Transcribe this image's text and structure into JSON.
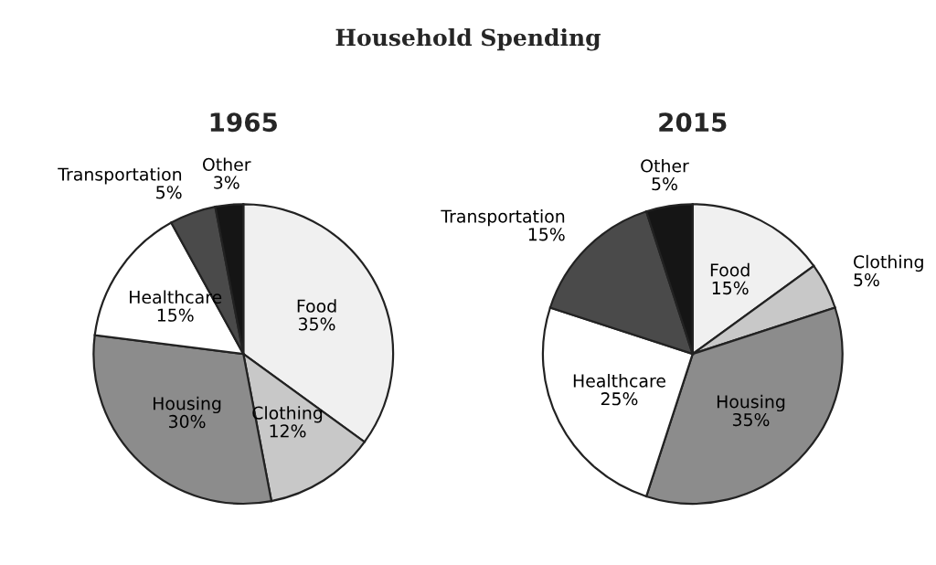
{
  "chart_data": [
    {
      "type": "pie",
      "title": "1965",
      "annotations": [
        "Household Spending"
      ],
      "categories": [
        "Food",
        "Clothing",
        "Housing",
        "Healthcare",
        "Transportation",
        "Other"
      ],
      "values": [
        35,
        12,
        30,
        15,
        5,
        3
      ],
      "value_labels": [
        "35%",
        "12%",
        "30%",
        "15%",
        "5%",
        "3%"
      ],
      "colors": [
        "#f0f0f0",
        "#c8c8c8",
        "#8c8c8c",
        "#ffffff",
        "#4a4a4a",
        "#151515"
      ]
    },
    {
      "type": "pie",
      "title": "2015",
      "categories": [
        "Food",
        "Clothing",
        "Housing",
        "Healthcare",
        "Transportation",
        "Other"
      ],
      "values": [
        15,
        5,
        35,
        25,
        15,
        5
      ],
      "value_labels": [
        "15%",
        "5%",
        "35%",
        "25%",
        "15%",
        "5%"
      ],
      "colors": [
        "#f0f0f0",
        "#c8c8c8",
        "#8c8c8c",
        "#ffffff",
        "#4a4a4a",
        "#151515"
      ]
    }
  ]
}
